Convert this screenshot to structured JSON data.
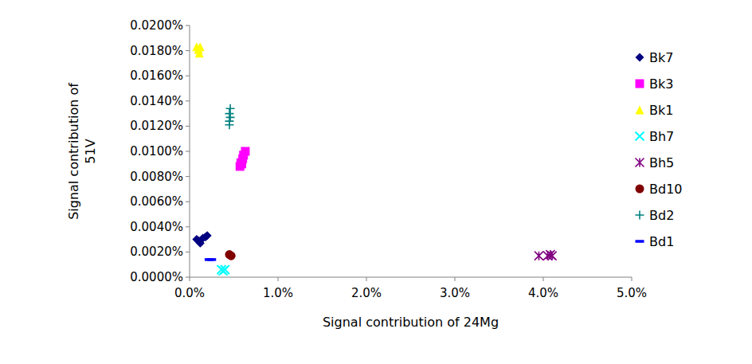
{
  "chart_data": {
    "type": "scatter",
    "x_label": "Signal contribution of 24Mg",
    "y_label": "Signal contribution of 51V",
    "xlim": [
      0,
      5
    ],
    "xticks": [
      {
        "value": 0,
        "label": "0.0%"
      },
      {
        "value": 1,
        "label": "1.0%"
      },
      {
        "value": 2,
        "label": "2.0%"
      },
      {
        "value": 3,
        "label": "3.0%"
      },
      {
        "value": 4,
        "label": "4.0%"
      },
      {
        "value": 5,
        "label": "5.0%"
      }
    ],
    "ylim": [
      0,
      0.02
    ],
    "yticks": [
      {
        "value": 0,
        "label": "0.0000%"
      },
      {
        "value": 0.002,
        "label": "0.0020%"
      },
      {
        "value": 0.004,
        "label": "0.0040%"
      },
      {
        "value": 0.006,
        "label": "0.0060%"
      },
      {
        "value": 0.008,
        "label": "0.0080%"
      },
      {
        "value": 0.01,
        "label": "0.0100%"
      },
      {
        "value": 0.012,
        "label": "0.0120%"
      },
      {
        "value": 0.014,
        "label": "0.0140%"
      },
      {
        "value": 0.016,
        "label": "0.0160%"
      },
      {
        "value": 0.018,
        "label": "0.0180%"
      },
      {
        "value": 0.02,
        "label": "0.0200%"
      }
    ],
    "grid": false,
    "legend": "right",
    "series": [
      {
        "name": "Bk7",
        "color": "#000080",
        "marker": "diamond",
        "x": [
          0.08,
          0.12,
          0.15,
          0.18,
          0.2,
          0.1
        ],
        "values": [
          0.003,
          0.0027,
          0.0031,
          0.0032,
          0.0033,
          0.0029
        ]
      },
      {
        "name": "Bk3",
        "color": "#ff00ff",
        "marker": "square",
        "x": [
          0.57,
          0.58,
          0.6,
          0.61,
          0.63,
          0.59
        ],
        "values": [
          0.0088,
          0.0091,
          0.0094,
          0.0097,
          0.01,
          0.009
        ]
      },
      {
        "name": "Bk1",
        "color": "#ffff00",
        "marker": "triangle",
        "x": [
          0.08,
          0.1,
          0.12,
          0.11
        ],
        "values": [
          0.0183,
          0.0181,
          0.0183,
          0.0178
        ]
      },
      {
        "name": "Bh7",
        "color": "#00ffff",
        "marker": "x",
        "x": [
          0.36,
          0.38,
          0.4
        ],
        "values": [
          0.0006,
          0.0005,
          0.0006
        ]
      },
      {
        "name": "Bh5",
        "color": "#800080",
        "marker": "asterisk",
        "x": [
          3.95,
          4.05,
          4.08,
          4.1
        ],
        "values": [
          0.0017,
          0.0017,
          0.0018,
          0.0017
        ]
      },
      {
        "name": "Bd10",
        "color": "#800000",
        "marker": "circle",
        "x": [
          0.45,
          0.47
        ],
        "values": [
          0.0018,
          0.0017
        ]
      },
      {
        "name": "Bd2",
        "color": "#008080",
        "marker": "plus",
        "x": [
          0.45,
          0.45,
          0.46,
          0.45,
          0.46
        ],
        "values": [
          0.0121,
          0.0124,
          0.0127,
          0.013,
          0.0134
        ]
      },
      {
        "name": "Bd1",
        "color": "#0000ff",
        "marker": "dash",
        "x": [
          0.22,
          0.25
        ],
        "values": [
          0.0014,
          0.0014
        ]
      }
    ]
  }
}
